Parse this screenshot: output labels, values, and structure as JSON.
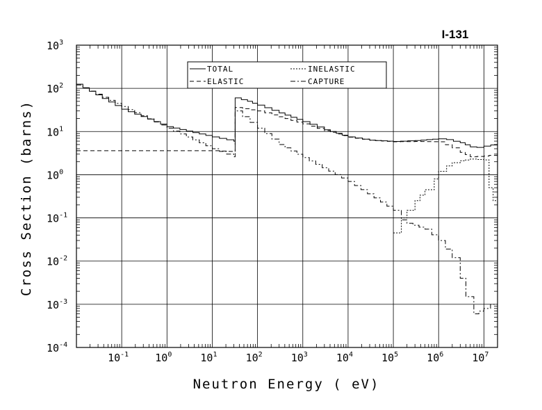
{
  "chart_data": {
    "type": "line",
    "title": "I-131",
    "xlabel": "Neutron Energy ( eV)",
    "ylabel": "Cross Section (barns)",
    "xscale": "log",
    "yscale": "log",
    "xlim": [
      0.01,
      20000000
    ],
    "ylim": [
      0.0001,
      1000
    ],
    "grid": true,
    "legend_position": "top-center",
    "x_ticks": [
      {
        "base": "10",
        "exp": "-1"
      },
      {
        "base": "10",
        "exp": "0"
      },
      {
        "base": "10",
        "exp": "1"
      },
      {
        "base": "10",
        "exp": "2"
      },
      {
        "base": "10",
        "exp": "3"
      },
      {
        "base": "10",
        "exp": "4"
      },
      {
        "base": "10",
        "exp": "5"
      },
      {
        "base": "10",
        "exp": "6"
      },
      {
        "base": "10",
        "exp": "7"
      }
    ],
    "y_ticks": [
      {
        "base": "10",
        "exp": "-4"
      },
      {
        "base": "10",
        "exp": "-3"
      },
      {
        "base": "10",
        "exp": "-2"
      },
      {
        "base": "10",
        "exp": "-1"
      },
      {
        "base": "10",
        "exp": "0"
      },
      {
        "base": "10",
        "exp": "1"
      },
      {
        "base": "10",
        "exp": "2"
      },
      {
        "base": "10",
        "exp": "3"
      }
    ],
    "legend": [
      "TOTAL",
      "INELASTIC",
      "ELASTIC",
      "CAPTURE"
    ],
    "series": [
      {
        "name": "TOTAL",
        "style": "solid",
        "step": true,
        "points": [
          [
            0.01,
            125
          ],
          [
            0.1,
            33
          ],
          [
            1,
            13
          ],
          [
            10,
            7.5
          ],
          [
            30,
            6
          ],
          [
            32,
            60
          ],
          [
            60,
            50
          ],
          [
            100,
            41
          ],
          [
            300,
            27
          ],
          [
            1000,
            17
          ],
          [
            3000,
            11
          ],
          [
            10000,
            7.5
          ],
          [
            30000,
            6.3
          ],
          [
            100000,
            5.9
          ],
          [
            300000,
            6.2
          ],
          [
            1000000,
            6.8
          ],
          [
            1500000,
            6.5
          ],
          [
            3000000,
            5.5
          ],
          [
            5000000,
            4.4
          ],
          [
            7000000,
            4.3
          ],
          [
            10000000,
            4.6
          ],
          [
            20000000,
            5.2
          ]
        ]
      },
      {
        "name": "INELASTIC",
        "style": "dotted",
        "step": true,
        "points": [
          [
            100000,
            0.045
          ],
          [
            150000,
            0.1
          ],
          [
            200000,
            0.15
          ],
          [
            300000,
            0.25
          ],
          [
            500000,
            0.45
          ],
          [
            800000,
            0.8
          ],
          [
            1000000,
            1.2
          ],
          [
            1500000,
            1.6
          ],
          [
            2000000,
            1.9
          ],
          [
            3000000,
            2.1
          ],
          [
            5000000,
            2.3
          ],
          [
            10000000,
            2.2
          ],
          [
            13000000,
            0.5
          ],
          [
            16000000,
            0.25
          ],
          [
            20000000,
            0.13
          ]
        ]
      },
      {
        "name": "ELASTIC",
        "style": "dashed",
        "step": true,
        "points": [
          [
            0.01,
            3.6
          ],
          [
            1,
            3.6
          ],
          [
            10,
            3.6
          ],
          [
            30,
            3.4
          ],
          [
            32,
            36
          ],
          [
            100,
            30
          ],
          [
            300,
            22
          ],
          [
            1000,
            15
          ],
          [
            3000,
            10.5
          ],
          [
            10000,
            7.4
          ],
          [
            30000,
            6.3
          ],
          [
            100000,
            5.8
          ],
          [
            300000,
            5.9
          ],
          [
            1000000,
            5.8
          ],
          [
            2000000,
            4.2
          ],
          [
            3000000,
            3.3
          ],
          [
            5000000,
            2.6
          ],
          [
            10000000,
            2.7
          ],
          [
            13000000,
            2.8
          ],
          [
            20000000,
            2.6
          ]
        ]
      },
      {
        "name": "CAPTURE",
        "style": "dashdot",
        "step": true,
        "points": [
          [
            0.01,
            120
          ],
          [
            0.1,
            38
          ],
          [
            1,
            12
          ],
          [
            10,
            4
          ],
          [
            30,
            2.6
          ],
          [
            32,
            30
          ],
          [
            100,
            12
          ],
          [
            300,
            5
          ],
          [
            1000,
            2.5
          ],
          [
            10000,
            0.7
          ],
          [
            100000,
            0.15
          ],
          [
            150000,
            0.09
          ],
          [
            200000,
            0.075
          ],
          [
            500000,
            0.055
          ],
          [
            1000000,
            0.03
          ],
          [
            2000000,
            0.012
          ],
          [
            3000000,
            0.004
          ],
          [
            4000000,
            0.0015
          ],
          [
            6000000,
            0.0006
          ],
          [
            10000000,
            0.0008
          ],
          [
            14000000,
            0.001
          ],
          [
            20000000,
            0.00105
          ]
        ]
      }
    ]
  }
}
